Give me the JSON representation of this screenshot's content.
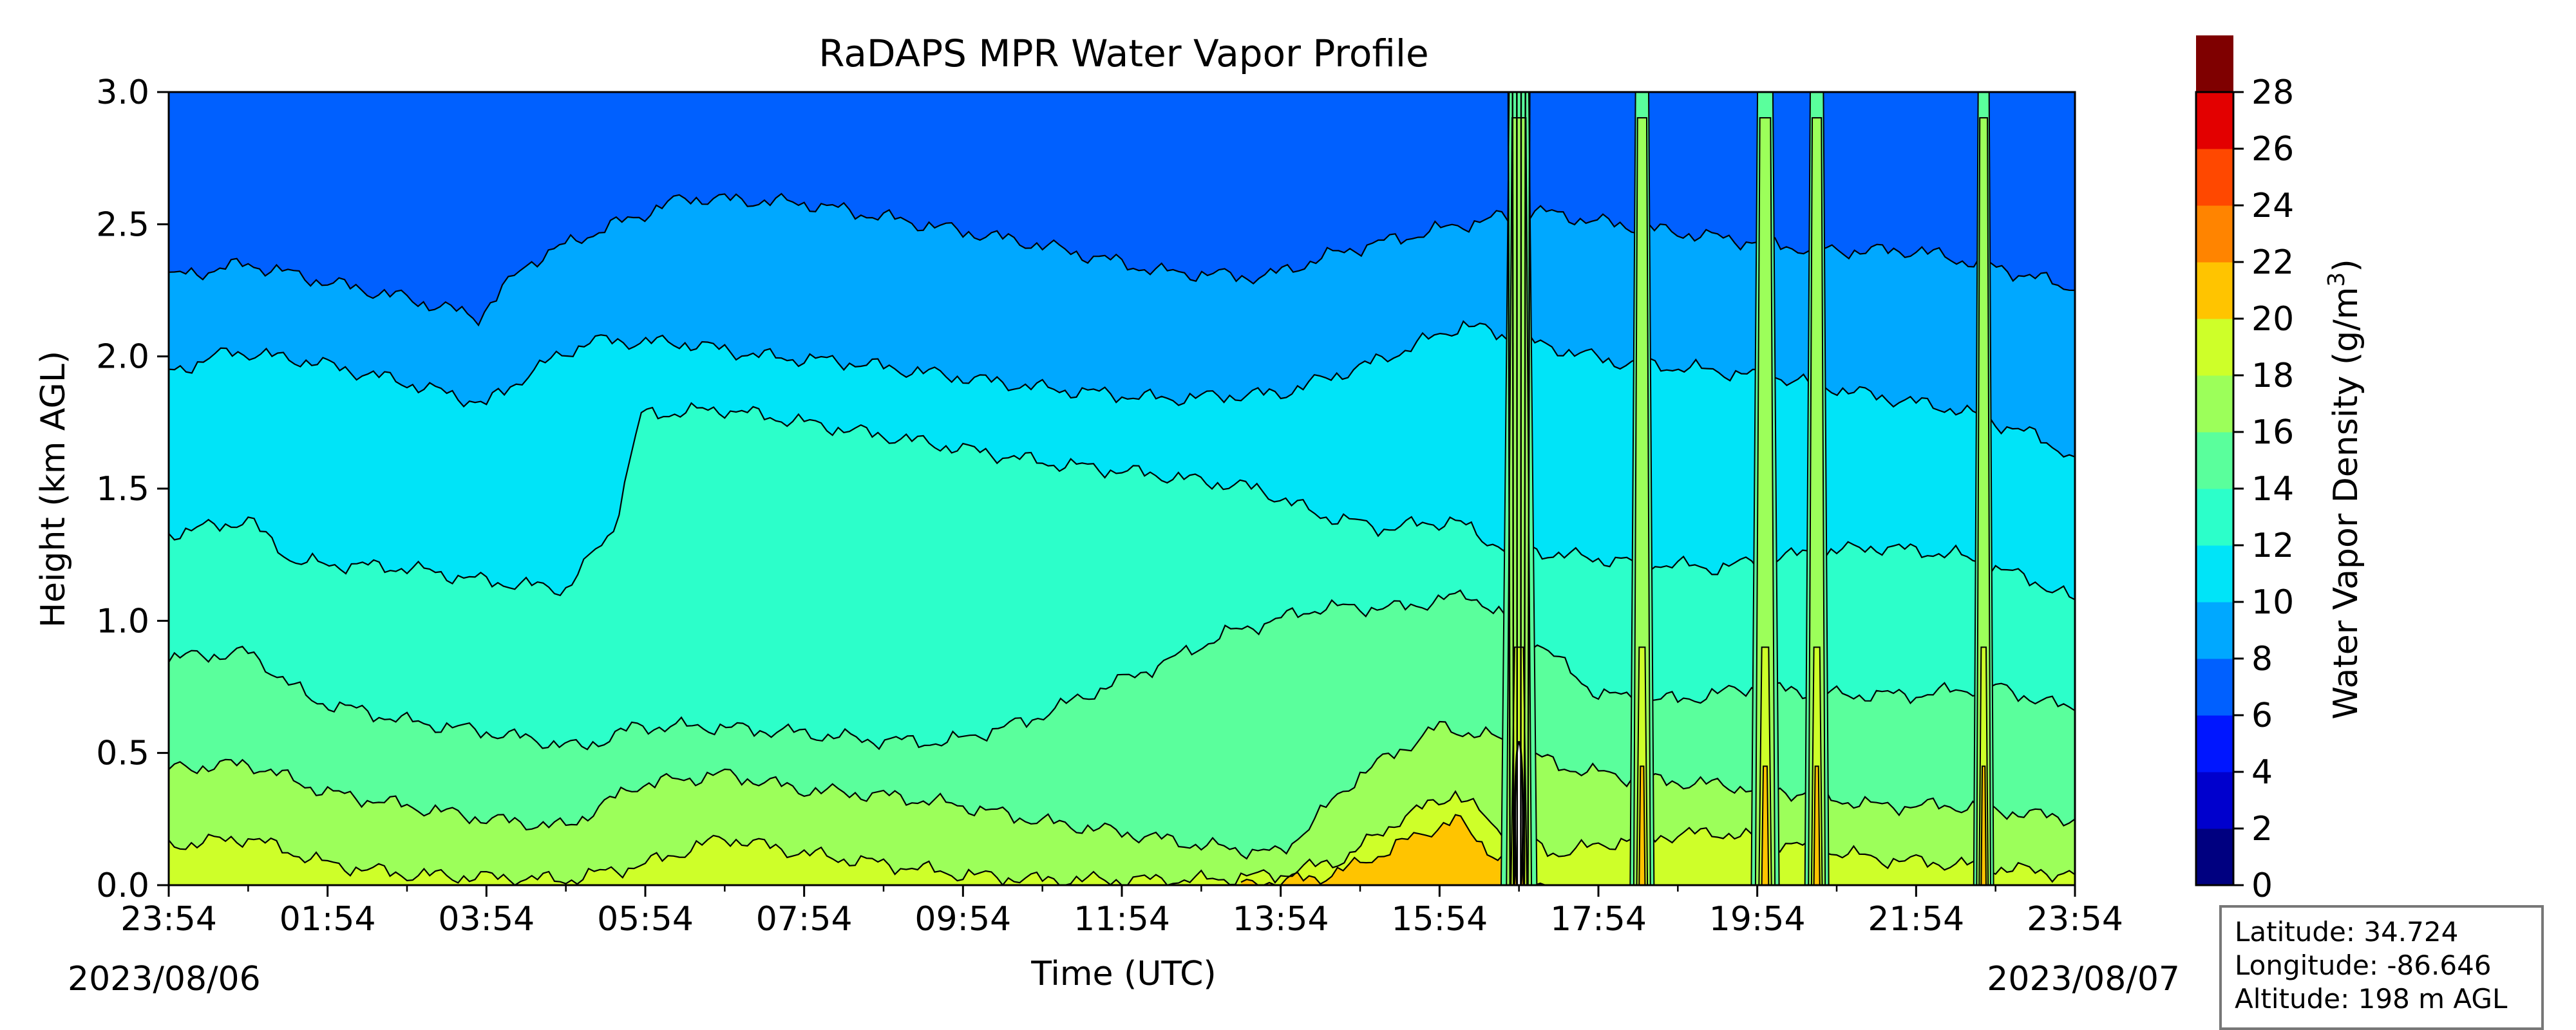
{
  "chart_data": {
    "type": "heatmap",
    "title": "RaDAPS MPR Water Vapor Profile",
    "xlabel": "Time (UTC)",
    "ylabel": "Height (km AGL)",
    "colorbar_label": "Water Vapor Density (g/m",
    "colorbar_label_sup": "3",
    "colorbar_label_close": ")",
    "x_ticks": [
      "23:54",
      "01:54",
      "03:54",
      "05:54",
      "07:54",
      "09:54",
      "11:54",
      "13:54",
      "15:54",
      "17:54",
      "19:54",
      "21:54",
      "23:54"
    ],
    "x_range_hours": [
      0,
      24
    ],
    "y_ticks": [
      "0.0",
      "0.5",
      "1.0",
      "1.5",
      "2.0",
      "2.5",
      "3.0"
    ],
    "ylim": [
      0,
      3
    ],
    "start_date": "2023/08/06",
    "end_date": "2023/08/07",
    "levels": [
      0,
      2,
      4,
      6,
      8,
      10,
      12,
      14,
      16,
      18,
      20,
      22,
      24,
      26,
      28
    ],
    "level_labels": [
      "0",
      "2",
      "4",
      "6",
      "8",
      "10",
      "12",
      "14",
      "16",
      "18",
      "20",
      "22",
      "24",
      "26",
      "28"
    ],
    "level_colors": [
      "#000080",
      "#0000cd",
      "#0016ff",
      "#0060ff",
      "#00a8ff",
      "#00e4f8",
      "#2cffca",
      "#5aff9c",
      "#9cff5a",
      "#ceff29",
      "#ffc400",
      "#ff8400",
      "#ff4800",
      "#e30000",
      "#7f0000"
    ],
    "contours": [
      {
        "level": 8,
        "points": [
          [
            0,
            2.3
          ],
          [
            1,
            2.35
          ],
          [
            2,
            2.28
          ],
          [
            3,
            2.22
          ],
          [
            3.9,
            2.15
          ],
          [
            4.5,
            2.35
          ],
          [
            5.2,
            2.45
          ],
          [
            6.5,
            2.6
          ],
          [
            8,
            2.58
          ],
          [
            9.5,
            2.5
          ],
          [
            11,
            2.42
          ],
          [
            12.5,
            2.32
          ],
          [
            13.8,
            2.3
          ],
          [
            14.8,
            2.4
          ],
          [
            16.3,
            2.5
          ],
          [
            17.2,
            2.55
          ],
          [
            18.2,
            2.5
          ],
          [
            19.5,
            2.45
          ],
          [
            20.8,
            2.4
          ],
          [
            22,
            2.4
          ],
          [
            22.8,
            2.35
          ],
          [
            23.5,
            2.3
          ],
          [
            24,
            2.25
          ]
        ]
      },
      {
        "level": 10,
        "points": [
          [
            0,
            1.94
          ],
          [
            0.8,
            2.02
          ],
          [
            1.8,
            1.98
          ],
          [
            3,
            1.9
          ],
          [
            4,
            1.82
          ],
          [
            4.6,
            1.95
          ],
          [
            5.3,
            2.06
          ],
          [
            6.5,
            2.05
          ],
          [
            7.5,
            2.0
          ],
          [
            8.5,
            1.98
          ],
          [
            9.5,
            1.94
          ],
          [
            11,
            1.88
          ],
          [
            12.5,
            1.84
          ],
          [
            14,
            1.86
          ],
          [
            15.2,
            1.98
          ],
          [
            16.3,
            2.12
          ],
          [
            17.2,
            2.05
          ],
          [
            18.2,
            1.98
          ],
          [
            19.3,
            1.95
          ],
          [
            20.3,
            1.92
          ],
          [
            21.5,
            1.85
          ],
          [
            22.5,
            1.8
          ],
          [
            23.5,
            1.7
          ],
          [
            24,
            1.62
          ]
        ]
      },
      {
        "level": 12,
        "points": [
          [
            0,
            1.33
          ],
          [
            1,
            1.38
          ],
          [
            1.6,
            1.22
          ],
          [
            3,
            1.2
          ],
          [
            4,
            1.15
          ],
          [
            5,
            1.12
          ],
          [
            5.6,
            1.35
          ],
          [
            5.95,
            1.78
          ],
          [
            7,
            1.8
          ],
          [
            8,
            1.75
          ],
          [
            9,
            1.7
          ],
          [
            10,
            1.65
          ],
          [
            11,
            1.6
          ],
          [
            12.5,
            1.55
          ],
          [
            13.7,
            1.5
          ],
          [
            14.5,
            1.4
          ],
          [
            15.3,
            1.35
          ],
          [
            16.2,
            1.38
          ],
          [
            16.6,
            1.3
          ],
          [
            17.5,
            1.25
          ],
          [
            18.5,
            1.22
          ],
          [
            19.5,
            1.2
          ],
          [
            20.5,
            1.25
          ],
          [
            21.5,
            1.28
          ],
          [
            22.5,
            1.25
          ],
          [
            23.5,
            1.15
          ],
          [
            24,
            1.08
          ]
        ]
      },
      {
        "level": 14,
        "points": [
          [
            0,
            0.86
          ],
          [
            1,
            0.88
          ],
          [
            1.8,
            0.7
          ],
          [
            3,
            0.62
          ],
          [
            4,
            0.58
          ],
          [
            5.2,
            0.52
          ],
          [
            5.9,
            0.6
          ],
          [
            6.8,
            0.6
          ],
          [
            7.8,
            0.58
          ],
          [
            8.8,
            0.55
          ],
          [
            9.8,
            0.54
          ],
          [
            10.8,
            0.62
          ],
          [
            11.8,
            0.75
          ],
          [
            12.6,
            0.85
          ],
          [
            13.3,
            0.95
          ],
          [
            14.5,
            1.05
          ],
          [
            15.5,
            1.05
          ],
          [
            16.4,
            1.1
          ],
          [
            17.3,
            0.9
          ],
          [
            18,
            0.72
          ],
          [
            19,
            0.7
          ],
          [
            20,
            0.75
          ],
          [
            21,
            0.72
          ],
          [
            22,
            0.72
          ],
          [
            23,
            0.75
          ],
          [
            24,
            0.66
          ]
        ]
      },
      {
        "level": 16,
        "points": [
          [
            0,
            0.44
          ],
          [
            1,
            0.46
          ],
          [
            2,
            0.35
          ],
          [
            3,
            0.3
          ],
          [
            4,
            0.25
          ],
          [
            5,
            0.22
          ],
          [
            5.9,
            0.38
          ],
          [
            7,
            0.42
          ],
          [
            8,
            0.36
          ],
          [
            9,
            0.34
          ],
          [
            10,
            0.3
          ],
          [
            11,
            0.24
          ],
          [
            12,
            0.2
          ],
          [
            13,
            0.15
          ],
          [
            14,
            0.12
          ],
          [
            15,
            0.42
          ],
          [
            16,
            0.6
          ],
          [
            16.8,
            0.55
          ],
          [
            17.5,
            0.45
          ],
          [
            18.5,
            0.4
          ],
          [
            19.5,
            0.38
          ],
          [
            20.5,
            0.35
          ],
          [
            21.5,
            0.3
          ],
          [
            22.5,
            0.3
          ],
          [
            24,
            0.25
          ]
        ]
      },
      {
        "level": 18,
        "points": [
          [
            0,
            0.15
          ],
          [
            1,
            0.18
          ],
          [
            2,
            0.08
          ],
          [
            3,
            0.04
          ],
          [
            4,
            0.03
          ],
          [
            5,
            0.02
          ],
          [
            6,
            0.08
          ],
          [
            7,
            0.18
          ],
          [
            8,
            0.12
          ],
          [
            9,
            0.08
          ],
          [
            10,
            0.04
          ],
          [
            11,
            0.02
          ],
          [
            12,
            0.02
          ],
          [
            13,
            0.02
          ],
          [
            14,
            0.04
          ],
          [
            14.8,
            0.1
          ],
          [
            15.5,
            0.25
          ],
          [
            16.2,
            0.35
          ],
          [
            16.8,
            0.2
          ],
          [
            17.5,
            0.12
          ],
          [
            18.5,
            0.18
          ],
          [
            19.5,
            0.2
          ],
          [
            20.5,
            0.15
          ],
          [
            21.5,
            0.1
          ],
          [
            22.5,
            0.08
          ],
          [
            24,
            0.04
          ]
        ]
      },
      {
        "level": 20,
        "points": [
          [
            13.5,
            0.0
          ],
          [
            14.5,
            0.03
          ],
          [
            15,
            0.08
          ],
          [
            15.6,
            0.17
          ],
          [
            16.2,
            0.25
          ],
          [
            16.6,
            0.14
          ],
          [
            17,
            0.05
          ],
          [
            17.4,
            0.0
          ]
        ]
      }
    ],
    "spikes": [
      {
        "time": 17.0,
        "width": 0.45
      },
      {
        "time": 18.55,
        "width": 0.3
      },
      {
        "time": 20.1,
        "width": 0.35
      },
      {
        "time": 20.75,
        "width": 0.3
      },
      {
        "time": 22.85,
        "width": 0.25
      }
    ],
    "station_box": {
      "latitude": "Latitude: 34.724",
      "longitude": "Longitude: -86.646",
      "altitude": "Altitude: 198 m AGL"
    }
  }
}
